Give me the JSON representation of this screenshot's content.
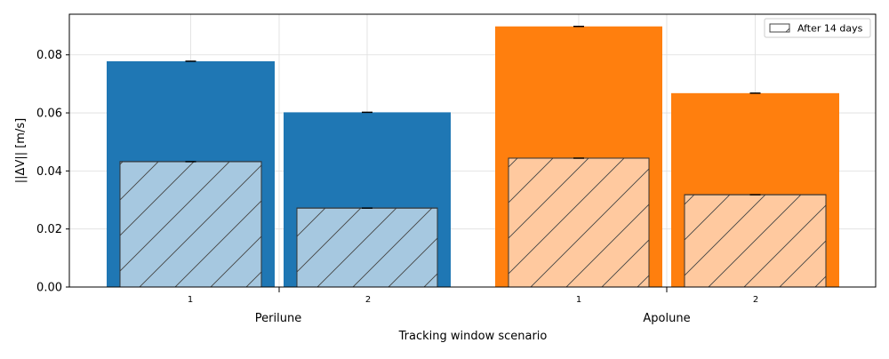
{
  "chart_data": {
    "type": "bar",
    "title": "",
    "xlabel": "Tracking window scenario",
    "ylabel": "||ΔV|| [m/s]",
    "ylim": [
      0,
      0.094
    ],
    "yticks": [
      0.0,
      0.02,
      0.04,
      0.06,
      0.08
    ],
    "ytick_labels": [
      "0.00",
      "0.02",
      "0.04",
      "0.06",
      "0.08"
    ],
    "grid": true,
    "legend": {
      "placement": "top-right",
      "entries": [
        "After 14 days"
      ]
    },
    "groups": [
      {
        "name": "Perilune",
        "color": "#1f77b4",
        "light_color": "#a6c8e0"
      },
      {
        "name": "Apolune",
        "color": "#ff7f0e",
        "light_color": "#ffc99f"
      }
    ],
    "bars": [
      {
        "group": "Perilune",
        "scenario": "1",
        "total": 0.0778,
        "after_14_days": 0.0432
      },
      {
        "group": "Perilune",
        "scenario": "2",
        "total": 0.0602,
        "after_14_days": 0.0272
      },
      {
        "group": "Apolune",
        "scenario": "1",
        "total": 0.0898,
        "after_14_days": 0.0444
      },
      {
        "group": "Apolune",
        "scenario": "2",
        "total": 0.0668,
        "after_14_days": 0.0318
      }
    ]
  }
}
